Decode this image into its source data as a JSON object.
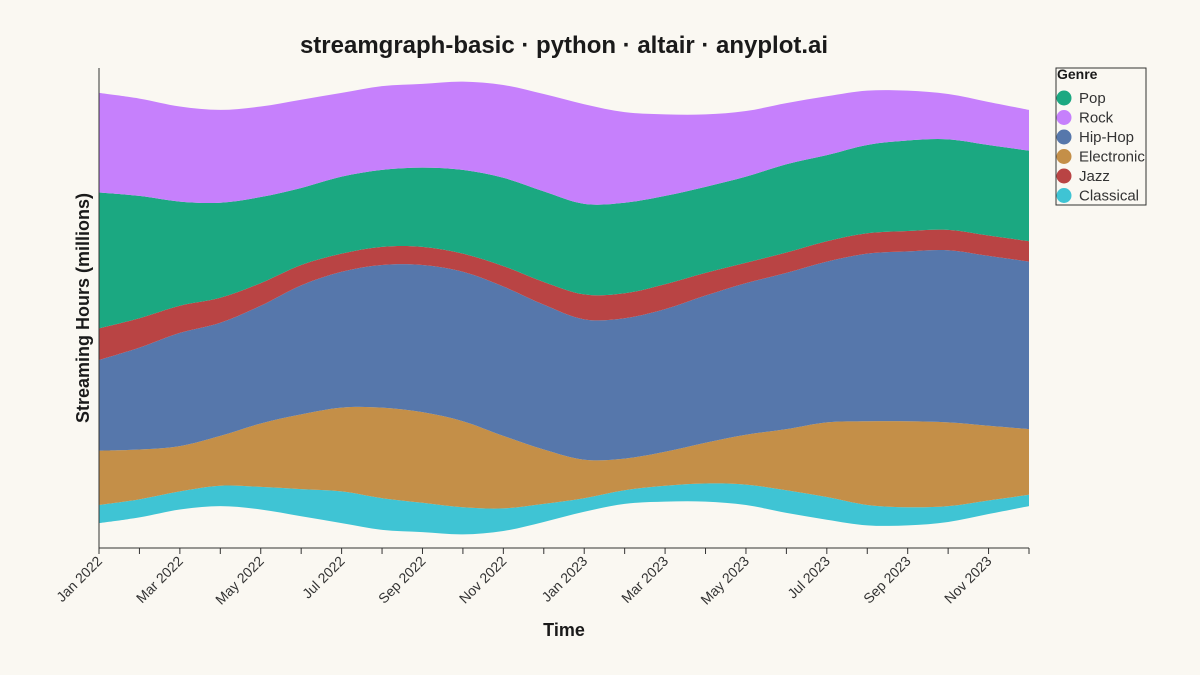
{
  "chart_data": {
    "type": "area",
    "title": "streamgraph-basic · python · altair · anyplot.ai",
    "xlabel": "Time",
    "ylabel": "Streaming Hours (millions)",
    "offset": "center",
    "legend_title": "Genre",
    "legend_position": "top-right",
    "x": [
      "2022-01",
      "2022-02",
      "2022-03",
      "2022-04",
      "2022-05",
      "2022-06",
      "2022-07",
      "2022-08",
      "2022-09",
      "2022-10",
      "2022-11",
      "2022-12",
      "2023-01",
      "2023-02",
      "2023-03",
      "2023-04",
      "2023-05",
      "2023-06",
      "2023-07",
      "2023-08",
      "2023-09",
      "2023-10",
      "2023-11",
      "2023-12"
    ],
    "x_tick_labels": [
      "Jan 2022",
      "Mar 2022",
      "May 2022",
      "Jul 2022",
      "Sep 2022",
      "Nov 2022",
      "Jan 2023",
      "Mar 2023",
      "May 2023",
      "Jul 2023",
      "Sep 2023",
      "Nov 2023"
    ],
    "series": [
      {
        "name": "Pop",
        "color": "#1ba881",
        "values": [
          60,
          54,
          46,
          42,
          38,
          34,
          34,
          34,
          35,
          37,
          39,
          40,
          40,
          40,
          39,
          38,
          38,
          39,
          38,
          39,
          40,
          40,
          40,
          40
        ]
      },
      {
        "name": "Rock",
        "color": "#c680fc",
        "values": [
          44,
          43,
          42,
          41,
          40,
          39,
          37,
          37,
          37,
          39,
          41,
          43,
          44,
          40,
          36,
          32,
          29,
          27,
          26,
          24,
          22,
          20,
          19,
          18
        ]
      },
      {
        "name": "Hip-Hop",
        "color": "#5677ab",
        "values": [
          40,
          45,
          50,
          50,
          52,
          57,
          60,
          63,
          65,
          66,
          66,
          64,
          62,
          62,
          63,
          65,
          67,
          69,
          71,
          74,
          75,
          76,
          75,
          74
        ]
      },
      {
        "name": "Electronic",
        "color": "#c48f48",
        "values": [
          24,
          22,
          20,
          22,
          28,
          33,
          37,
          40,
          40,
          38,
          32,
          24,
          17,
          14,
          15,
          18,
          22,
          27,
          33,
          37,
          38,
          37,
          33,
          29
        ]
      },
      {
        "name": "Jazz",
        "color": "#b94444",
        "values": [
          14,
          13,
          12,
          11,
          10,
          9,
          8,
          8,
          8,
          8,
          9,
          10,
          11,
          11,
          11,
          10,
          9,
          9,
          9,
          9,
          9,
          9,
          9,
          9
        ]
      },
      {
        "name": "Classical",
        "color": "#3fc4d4",
        "values": [
          8,
          8,
          8,
          9,
          10,
          12,
          14,
          14,
          13,
          12,
          10,
          8,
          6,
          6,
          7,
          8,
          9,
          10,
          10,
          9,
          8,
          7,
          6,
          5
        ]
      }
    ]
  }
}
